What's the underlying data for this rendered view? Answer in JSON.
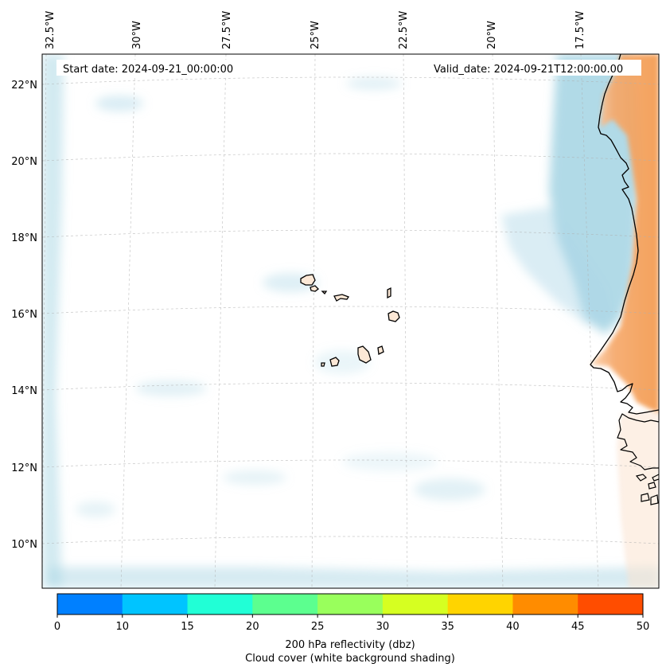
{
  "map": {
    "start_date": "Start date: 2024-09-21_00:00:00",
    "valid_date": "Valid_date: 2024-09-21T12:00:00.00",
    "lon_labels": [
      "32.5°W",
      "30°W",
      "27.5°W",
      "25°W",
      "22.5°W",
      "20°W",
      "17.5°W"
    ],
    "lat_labels": [
      "22°N",
      "20°N",
      "18°N",
      "16°N",
      "14°N",
      "12°N",
      "10°N"
    ],
    "features": [
      "cape-verde-islands",
      "west-africa-coastline"
    ]
  },
  "colorbar": {
    "title": "200 hPa reflectivity (dbz)",
    "subtitle": "Cloud cover (white background shading)",
    "ticks": [
      "0",
      "10",
      "15",
      "20",
      "25",
      "30",
      "35",
      "40",
      "45",
      "50"
    ],
    "colors": [
      "#0080ff",
      "#00c4ff",
      "#21ffd6",
      "#5cff8f",
      "#99ff5c",
      "#d6ff21",
      "#ffd400",
      "#ff8c00",
      "#ff4d00"
    ]
  },
  "palette": {
    "cloud": "#add8e6",
    "land_warm": "#f59a4f",
    "coast": "#000000",
    "grid": "#b0b0b0"
  }
}
